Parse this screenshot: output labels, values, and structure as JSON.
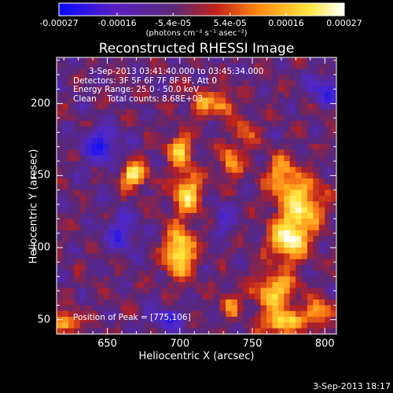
{
  "chart_data": {
    "type": "heatmap",
    "title": "Reconstructed RHESSI Image",
    "xlabel": "Heliocentric X (arcsec)",
    "ylabel": "Heliocentric Y (arcsec)",
    "xlim": [
      615,
      808
    ],
    "ylim": [
      40,
      232
    ],
    "x_ticks": [
      650,
      700,
      750,
      800
    ],
    "y_ticks": [
      50,
      100,
      150,
      200
    ],
    "colorbar": {
      "range": [
        -0.00027,
        0.00027
      ],
      "tick_values": [
        -0.00027,
        -0.00016,
        -5.4e-05,
        5.4e-05,
        0.00016,
        0.00027
      ],
      "tick_labels": [
        "-0.00027",
        "-0.00016",
        "-5.4e-05",
        "5.4e-05",
        "0.00016",
        "0.00027"
      ],
      "unit": "(photons cm⁻² s⁻¹ asec⁻²)",
      "colormap": [
        "#0a0aff",
        "#5a20c0",
        "#5a2a78",
        "#c0201a",
        "#ff8a10",
        "#ffe840",
        "#ffffff"
      ]
    },
    "annotations": {
      "time_range": "3-Sep-2013 03:41:40.000 to 03:45:34.000",
      "detectors": "Detectors: 3F 5F 6F 7F 8F 9F, Att 0",
      "energy": "Energy Range: 25.0 - 50.0 keV",
      "clean": "Clean    Total counts: 8.68E+03",
      "peak": "Position of Peak = [775,106]"
    },
    "sources": [
      {
        "x": 775,
        "y": 106,
        "amp": 1.0,
        "sx": 9,
        "sy": 10
      },
      {
        "x": 785,
        "y": 130,
        "amp": 0.8,
        "sx": 10,
        "sy": 12
      },
      {
        "x": 770,
        "y": 150,
        "amp": 0.6,
        "sx": 8,
        "sy": 10
      },
      {
        "x": 765,
        "y": 70,
        "amp": 0.75,
        "sx": 10,
        "sy": 9
      },
      {
        "x": 770,
        "y": 48,
        "amp": 0.85,
        "sx": 9,
        "sy": 6
      },
      {
        "x": 795,
        "y": 55,
        "amp": 0.7,
        "sx": 6,
        "sy": 7
      },
      {
        "x": 700,
        "y": 97,
        "amp": 0.95,
        "sx": 7,
        "sy": 12
      },
      {
        "x": 705,
        "y": 138,
        "amp": 0.8,
        "sx": 7,
        "sy": 10
      },
      {
        "x": 700,
        "y": 168,
        "amp": 0.7,
        "sx": 6,
        "sy": 8
      },
      {
        "x": 668,
        "y": 150,
        "amp": 0.95,
        "sx": 6,
        "sy": 6
      },
      {
        "x": 622,
        "y": 48,
        "amp": 0.8,
        "sx": 6,
        "sy": 5
      },
      {
        "x": 730,
        "y": 200,
        "amp": 0.6,
        "sx": 5,
        "sy": 6
      },
      {
        "x": 735,
        "y": 160,
        "amp": 0.6,
        "sx": 5,
        "sy": 8
      },
      {
        "x": 715,
        "y": 200,
        "amp": 0.5,
        "sx": 6,
        "sy": 7
      },
      {
        "x": 745,
        "y": 180,
        "amp": 0.45,
        "sx": 5,
        "sy": 7
      },
      {
        "x": 735,
        "y": 60,
        "amp": 0.55,
        "sx": 4,
        "sy": 6
      }
    ],
    "negative_regions": [
      {
        "x": 645,
        "y": 170,
        "amp": -0.55,
        "sx": 9,
        "sy": 9
      },
      {
        "x": 660,
        "y": 110,
        "amp": -0.45,
        "sx": 8,
        "sy": 9
      },
      {
        "x": 800,
        "y": 210,
        "amp": -0.5,
        "sx": 7,
        "sy": 7
      },
      {
        "x": 690,
        "y": 50,
        "amp": -0.45,
        "sx": 9,
        "sy": 6
      },
      {
        "x": 730,
        "y": 120,
        "amp": -0.35,
        "sx": 5,
        "sy": 8
      }
    ]
  },
  "footer": {
    "date": "3-Sep-2013 18:17"
  }
}
